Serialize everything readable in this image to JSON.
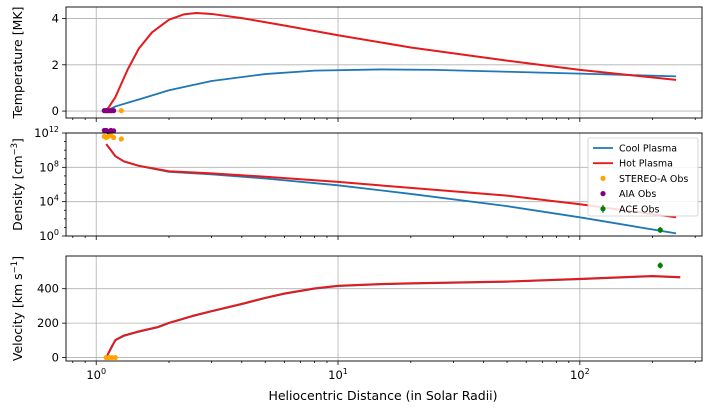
{
  "chart_data": {
    "type": "line",
    "xlabel": "Heliocentric Distance (in Solar Radii)",
    "xscale": "log",
    "xlim": [
      0.75,
      320
    ],
    "x_ticks": [
      {
        "value": 1,
        "label": "10",
        "exp": "0"
      },
      {
        "value": 10,
        "label": "10",
        "exp": "1"
      },
      {
        "value": 100,
        "label": "10",
        "exp": "2"
      }
    ],
    "grid": true,
    "colors": {
      "cool": "#1f77b4",
      "hot": "#e41a1c",
      "stereo": "#ffa500",
      "aia": "#800080",
      "ace": "#008000"
    },
    "legend": {
      "panel": "density",
      "placement": "right",
      "entries": [
        {
          "label": "Cool Plasma",
          "marker": "line",
          "color_key": "cool"
        },
        {
          "label": "Hot Plasma",
          "marker": "line",
          "color_key": "hot"
        },
        {
          "label": "STEREO-A Obs",
          "marker": "dot",
          "color_key": "stereo"
        },
        {
          "label": "AIA Obs",
          "marker": "dot",
          "color_key": "aia"
        },
        {
          "label": "ACE Obs",
          "marker": "errorbar",
          "color_key": "ace"
        }
      ]
    },
    "panels": [
      {
        "id": "temperature",
        "ylabel": "Temperature [MK]",
        "yscale": "linear",
        "ylim": [
          -0.3,
          4.5
        ],
        "y_ticks": [
          {
            "value": 0,
            "label": "0"
          },
          {
            "value": 2,
            "label": "2"
          },
          {
            "value": 4,
            "label": "4"
          }
        ],
        "series": [
          {
            "key": "cool",
            "name": "Cool Plasma",
            "x": [
              1.1,
              1.2,
              1.5,
              2,
              3,
              5,
              8,
              15,
              25,
              50,
              100,
              250
            ],
            "y": [
              0.0,
              0.2,
              0.5,
              0.9,
              1.3,
              1.6,
              1.75,
              1.8,
              1.78,
              1.7,
              1.62,
              1.5
            ]
          },
          {
            "key": "hot",
            "name": "Hot Plasma",
            "x": [
              1.1,
              1.2,
              1.35,
              1.5,
              1.7,
              2,
              2.3,
              2.6,
              3,
              4,
              6,
              10,
              20,
              50,
              100,
              250
            ],
            "y": [
              0.0,
              0.6,
              1.8,
              2.7,
              3.4,
              3.95,
              4.18,
              4.24,
              4.2,
              4.02,
              3.7,
              3.28,
              2.75,
              2.18,
              1.78,
              1.35
            ]
          }
        ],
        "observations": [
          {
            "key": "stereo",
            "x": [
              1.11,
              1.13,
              1.15,
              1.27
            ],
            "y": [
              0.02,
              0.02,
              0.02,
              0.02
            ]
          },
          {
            "key": "aia",
            "x": [
              1.08,
              1.1,
              1.12,
              1.15,
              1.18
            ],
            "y": [
              0.02,
              0.02,
              0.02,
              0.02,
              0.02
            ]
          }
        ]
      },
      {
        "id": "density",
        "ylabel": "Density [cm",
        "ylabel_exp": "−3",
        "ylabel_end": "]",
        "yscale": "log",
        "ylim": [
          1,
          1000000000000.0
        ],
        "y_ticks": [
          {
            "value": 1,
            "label": "10",
            "exp": "0"
          },
          {
            "value": 10000,
            "label": "10",
            "exp": "4"
          },
          {
            "value": 100000000,
            "label": "10",
            "exp": "8"
          },
          {
            "value": 1000000000000,
            "label": "10",
            "exp": "12"
          }
        ],
        "series": [
          {
            "key": "cool",
            "name": "Cool Plasma",
            "x": [
              1.1,
              1.15,
              1.2,
              1.3,
              1.5,
              2,
              3,
              5,
              10,
              20,
              50,
              100,
              250
            ],
            "y": [
              50000000000,
              10000000000,
              2000000000,
              500000000,
              150000000,
              30000000,
              15000000,
              5000000,
              800000,
              80000,
              3000,
              150,
              2
            ]
          },
          {
            "key": "hot",
            "name": "Hot Plasma",
            "x": [
              1.1,
              1.15,
              1.2,
              1.3,
              1.5,
              2,
              3,
              5,
              10,
              20,
              50,
              100,
              250
            ],
            "y": [
              50000000000,
              10000000000,
              2000000000,
              500000000,
              150000000,
              35000000,
              20000000,
              8000000,
              2000000,
              400000,
              50000,
              5000,
              150
            ]
          }
        ],
        "observations": [
          {
            "key": "stereo",
            "x": [
              1.08,
              1.1,
              1.12,
              1.15,
              1.18,
              1.27
            ],
            "y": [
              400000000000,
              300000000000,
              400000000000,
              500000000000,
              300000000000,
              200000000000
            ]
          },
          {
            "key": "aia",
            "x": [
              1.08,
              1.1,
              1.12,
              1.15,
              1.18
            ],
            "y": [
              2000000000000,
              2000000000000,
              1500000000000,
              2000000000000,
              1800000000000
            ]
          },
          {
            "key": "ace",
            "x": [
              215
            ],
            "y": [
              5
            ]
          }
        ]
      },
      {
        "id": "velocity",
        "ylabel": "Velocity [km s",
        "ylabel_exp": "−1",
        "ylabel_end": "]",
        "yscale": "linear",
        "ylim": [
          -20,
          590
        ],
        "y_ticks": [
          {
            "value": 0,
            "label": "0"
          },
          {
            "value": 200,
            "label": "200"
          },
          {
            "value": 400,
            "label": "400"
          }
        ],
        "series": [
          {
            "key": "cool",
            "name": "Cool Plasma",
            "x": [
              1.1,
              1.15,
              1.2,
              1.3,
              1.5,
              1.8,
              2,
              2.5,
              3,
              4,
              5,
              6,
              8,
              10,
              15,
              20,
              50,
              100,
              200,
              260
            ],
            "y": [
              0,
              50,
              100,
              125,
              150,
              175,
              200,
              240,
              268,
              310,
              345,
              370,
              400,
              415,
              425,
              430,
              440,
              455,
              472,
              465
            ]
          },
          {
            "key": "hot",
            "name": "Hot Plasma",
            "x": [
              1.1,
              1.15,
              1.2,
              1.3,
              1.5,
              1.8,
              2,
              2.5,
              3,
              4,
              5,
              6,
              8,
              10,
              15,
              20,
              50,
              100,
              200,
              260
            ],
            "y": [
              0,
              55,
              102,
              128,
              152,
              178,
              202,
              242,
              270,
              312,
              347,
              372,
              402,
              417,
              427,
              432,
              442,
              457,
              474,
              467
            ]
          }
        ],
        "observations": [
          {
            "key": "stereo",
            "x": [
              1.1,
              1.13,
              1.16,
              1.2
            ],
            "y": [
              0,
              0,
              0,
              0
            ]
          },
          {
            "key": "ace",
            "x": [
              215
            ],
            "y": [
              535
            ]
          }
        ]
      }
    ]
  }
}
